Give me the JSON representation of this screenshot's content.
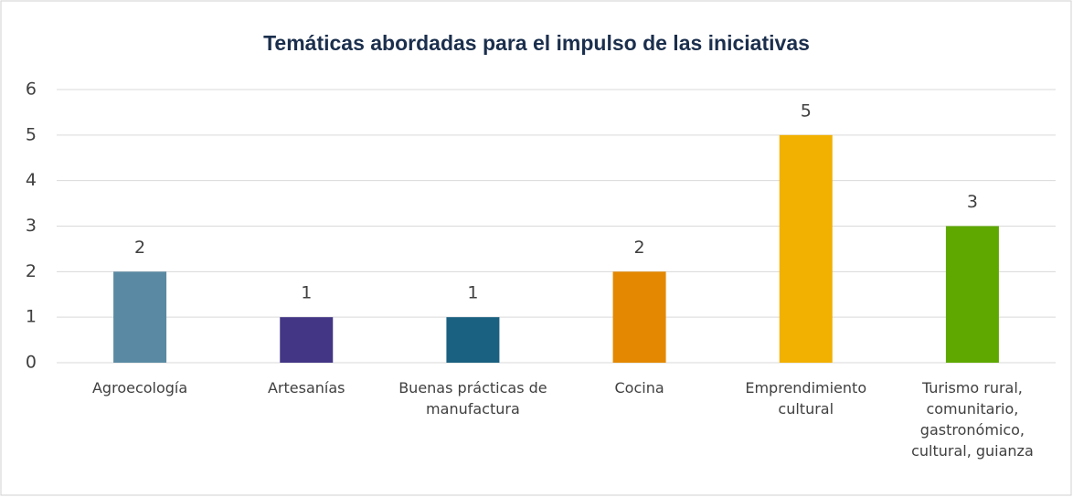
{
  "chart_data": {
    "type": "bar",
    "title": "Temáticas abordadas para el impulso de las iniciativas",
    "categories": [
      "Agroecología",
      "Artesanías",
      "Buenas prácticas de manufactura",
      "Cocina",
      "Emprendimiento cultural",
      "Turismo rural, comunitario, gastronómico, cultural, guianza"
    ],
    "values": [
      2,
      1,
      1,
      2,
      5,
      3
    ],
    "colors": [
      "#5a8aa3",
      "#433685",
      "#1a6080",
      "#e38800",
      "#f2b000",
      "#5ea800"
    ],
    "ylim": [
      0,
      6
    ],
    "yticks": [
      0,
      1,
      2,
      3,
      4,
      5,
      6
    ],
    "grid": true
  }
}
